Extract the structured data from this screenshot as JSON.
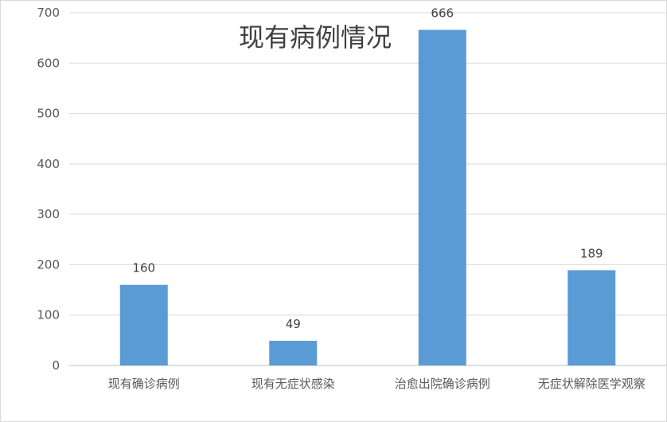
{
  "chart_data": {
    "type": "bar",
    "title": "现有病例情况",
    "categories": [
      "现有确诊病例",
      "现有无症状感染",
      "治愈出院确诊病例",
      "无症状解除医学观察"
    ],
    "values": [
      160,
      49,
      666,
      189
    ],
    "ylim": [
      0,
      700
    ],
    "yticks": [
      0,
      100,
      200,
      300,
      400,
      500,
      600,
      700
    ],
    "grid": true,
    "bar_color": "#5b9bd5",
    "data_labels": true
  }
}
